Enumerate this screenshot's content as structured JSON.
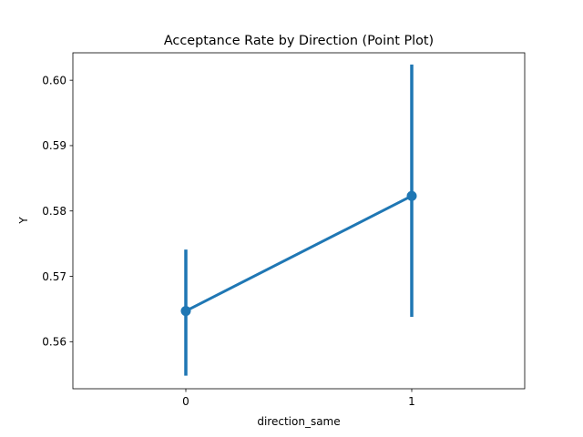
{
  "chart_data": {
    "type": "line",
    "title": "Acceptance Rate by Direction (Point Plot)",
    "xlabel": "direction_same",
    "ylabel": "Y",
    "categories": [
      "0",
      "1"
    ],
    "series": [
      {
        "values": [
          0.5647,
          0.5823
        ],
        "ci_low": [
          0.5548,
          0.5638
        ],
        "ci_high": [
          0.5741,
          0.6024
        ],
        "color": "#1f77b4"
      }
    ],
    "yticks": [
      "0.56",
      "0.57",
      "0.58",
      "0.59",
      "0.60"
    ],
    "ylim": [
      0.5528,
      0.6042
    ],
    "grid": false,
    "legend": "none"
  }
}
